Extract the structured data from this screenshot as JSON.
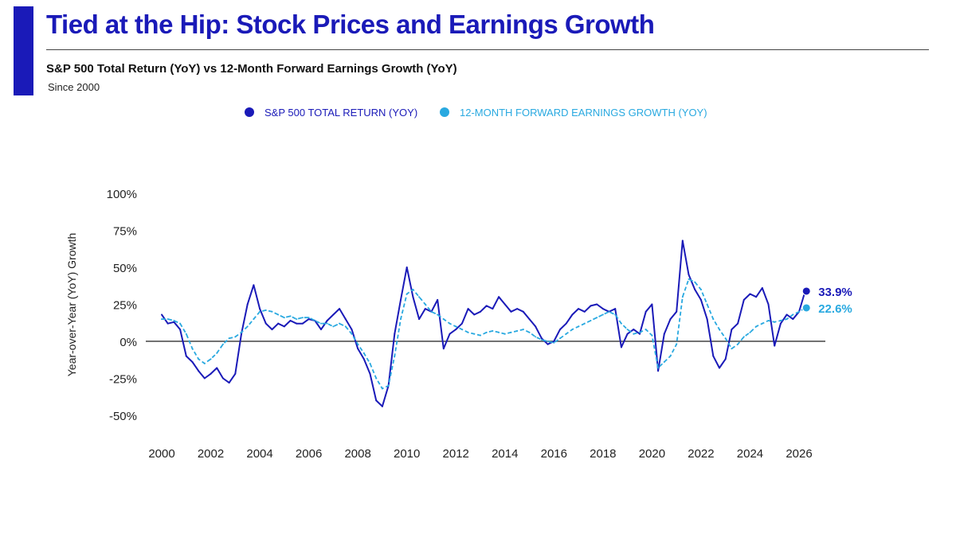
{
  "header": {
    "title": "Tied at the Hip: Stock Prices and Earnings Growth",
    "subtitle": "S&P 500 Total Return (YoY) vs 12-Month Forward Earnings Growth (YoY)",
    "since": "Since 2000"
  },
  "colors": {
    "accent": "#1a1ab8",
    "sp500": "#1a1ab8",
    "earnings": "#29a9e0",
    "zero_line": "#444444"
  },
  "chart_data": {
    "type": "line",
    "title": "S&P 500 Total Return (YoY) vs 12-Month Forward Earnings Growth (YoY)",
    "xlabel": "",
    "ylabel": "Year-over-Year (YoY) Growth",
    "xlim": [
      2000,
      2026.5
    ],
    "ylim": [
      -50,
      100
    ],
    "x_ticks": [
      2000,
      2002,
      2004,
      2006,
      2008,
      2010,
      2012,
      2014,
      2016,
      2018,
      2020,
      2022,
      2024,
      2026
    ],
    "x_tick_labels": [
      "2000",
      "2002",
      "2004",
      "2006",
      "2008",
      "2010",
      "2012",
      "2014",
      "2016",
      "2018",
      "2020",
      "2022",
      "2024",
      "2026"
    ],
    "y_ticks": [
      -50,
      -25,
      0,
      25,
      50,
      75,
      100
    ],
    "y_tick_labels": [
      "-50%",
      "-25%",
      "0%",
      "25%",
      "50%",
      "75%",
      "100%"
    ],
    "legend_position": "top-center",
    "series": [
      {
        "name": "S&P 500 TOTAL RETURN (YOY)",
        "style": "solid",
        "x": [
          2000.0,
          2000.25,
          2000.5,
          2000.75,
          2001.0,
          2001.25,
          2001.5,
          2001.75,
          2002.0,
          2002.25,
          2002.5,
          2002.75,
          2003.0,
          2003.25,
          2003.5,
          2003.75,
          2004.0,
          2004.25,
          2004.5,
          2004.75,
          2005.0,
          2005.25,
          2005.5,
          2005.75,
          2006.0,
          2006.25,
          2006.5,
          2006.75,
          2007.0,
          2007.25,
          2007.5,
          2007.75,
          2008.0,
          2008.25,
          2008.5,
          2008.75,
          2009.0,
          2009.25,
          2009.5,
          2009.75,
          2010.0,
          2010.25,
          2010.5,
          2010.75,
          2011.0,
          2011.25,
          2011.5,
          2011.75,
          2012.0,
          2012.25,
          2012.5,
          2012.75,
          2013.0,
          2013.25,
          2013.5,
          2013.75,
          2014.0,
          2014.25,
          2014.5,
          2014.75,
          2015.0,
          2015.25,
          2015.5,
          2015.75,
          2016.0,
          2016.25,
          2016.5,
          2016.75,
          2017.0,
          2017.25,
          2017.5,
          2017.75,
          2018.0,
          2018.25,
          2018.5,
          2018.75,
          2019.0,
          2019.25,
          2019.5,
          2019.75,
          2020.0,
          2020.25,
          2020.5,
          2020.75,
          2021.0,
          2021.25,
          2021.5,
          2021.75,
          2022.0,
          2022.25,
          2022.5,
          2022.75,
          2023.0,
          2023.25,
          2023.5,
          2023.75,
          2024.0,
          2024.25,
          2024.5,
          2024.75,
          2025.0,
          2025.25,
          2025.5,
          2025.75,
          2026.0,
          2026.25
        ],
        "values": [
          18,
          12,
          13,
          8,
          -10,
          -14,
          -20,
          -25,
          -22,
          -18,
          -25,
          -28,
          -22,
          5,
          25,
          38,
          22,
          12,
          8,
          12,
          10,
          14,
          12,
          12,
          15,
          14,
          8,
          14,
          18,
          22,
          15,
          8,
          -5,
          -12,
          -22,
          -40,
          -44,
          -30,
          5,
          28,
          50,
          30,
          15,
          22,
          20,
          28,
          -5,
          5,
          8,
          12,
          22,
          18,
          20,
          24,
          22,
          30,
          25,
          20,
          22,
          20,
          15,
          10,
          2,
          -2,
          0,
          8,
          12,
          18,
          22,
          20,
          24,
          25,
          22,
          20,
          22,
          -4,
          5,
          8,
          5,
          20,
          25,
          -20,
          5,
          15,
          20,
          68,
          45,
          35,
          28,
          15,
          -10,
          -18,
          -12,
          8,
          12,
          28,
          32,
          30,
          36,
          25,
          -3,
          12,
          18,
          15,
          20,
          33.9
        ]
      },
      {
        "name": "12-MONTH FORWARD EARNINGS GROWTH (YOY)",
        "style": "dashed",
        "x": [
          2000.0,
          2000.25,
          2000.5,
          2000.75,
          2001.0,
          2001.25,
          2001.5,
          2001.75,
          2002.0,
          2002.25,
          2002.5,
          2002.75,
          2003.0,
          2003.25,
          2003.5,
          2003.75,
          2004.0,
          2004.25,
          2004.5,
          2004.75,
          2005.0,
          2005.25,
          2005.5,
          2005.75,
          2006.0,
          2006.25,
          2006.5,
          2006.75,
          2007.0,
          2007.25,
          2007.5,
          2007.75,
          2008.0,
          2008.25,
          2008.5,
          2008.75,
          2009.0,
          2009.25,
          2009.5,
          2009.75,
          2010.0,
          2010.25,
          2010.5,
          2010.75,
          2011.0,
          2011.25,
          2011.5,
          2011.75,
          2012.0,
          2012.25,
          2012.5,
          2012.75,
          2013.0,
          2013.25,
          2013.5,
          2013.75,
          2014.0,
          2014.25,
          2014.5,
          2014.75,
          2015.0,
          2015.25,
          2015.5,
          2015.75,
          2016.0,
          2016.25,
          2016.5,
          2016.75,
          2017.0,
          2017.25,
          2017.5,
          2017.75,
          2018.0,
          2018.25,
          2018.5,
          2018.75,
          2019.0,
          2019.25,
          2019.5,
          2019.75,
          2020.0,
          2020.25,
          2020.5,
          2020.75,
          2021.0,
          2021.25,
          2021.5,
          2021.75,
          2022.0,
          2022.25,
          2022.5,
          2022.75,
          2023.0,
          2023.25,
          2023.5,
          2023.75,
          2024.0,
          2024.25,
          2024.5,
          2024.75,
          2025.0,
          2025.25,
          2025.5,
          2025.75,
          2026.0,
          2026.25
        ],
        "values": [
          15,
          15,
          14,
          12,
          5,
          -5,
          -12,
          -15,
          -12,
          -8,
          -2,
          2,
          3,
          6,
          10,
          15,
          20,
          21,
          20,
          18,
          16,
          17,
          15,
          16,
          16,
          14,
          12,
          12,
          10,
          12,
          10,
          5,
          -2,
          -8,
          -15,
          -25,
          -32,
          -30,
          -10,
          15,
          32,
          35,
          30,
          25,
          20,
          18,
          15,
          12,
          10,
          8,
          6,
          5,
          4,
          6,
          7,
          6,
          5,
          6,
          7,
          8,
          6,
          3,
          1,
          0,
          -1,
          2,
          5,
          8,
          10,
          12,
          14,
          16,
          18,
          20,
          18,
          12,
          8,
          5,
          6,
          8,
          4,
          -18,
          -14,
          -10,
          -2,
          30,
          42,
          40,
          35,
          25,
          15,
          8,
          2,
          -5,
          -2,
          3,
          6,
          10,
          12,
          14,
          13,
          14,
          15,
          18,
          20,
          22.6
        ]
      }
    ],
    "annotations": [
      {
        "series": "S&P 500 TOTAL RETURN (YOY)",
        "x": 2026.25,
        "y": 33.9,
        "label": "33.9%"
      },
      {
        "series": "12-MONTH FORWARD EARNINGS GROWTH (YOY)",
        "x": 2026.25,
        "y": 22.6,
        "label": "22.6%"
      }
    ]
  }
}
